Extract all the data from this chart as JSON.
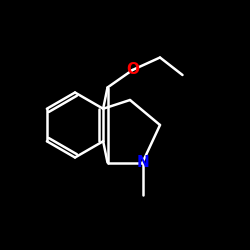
{
  "background": "#000000",
  "bond_color": "#000000",
  "line_color": "#ffffff",
  "O_color": "#ff0000",
  "N_color": "#0000ff",
  "figsize": [
    2.5,
    2.5
  ],
  "dpi": 100
}
